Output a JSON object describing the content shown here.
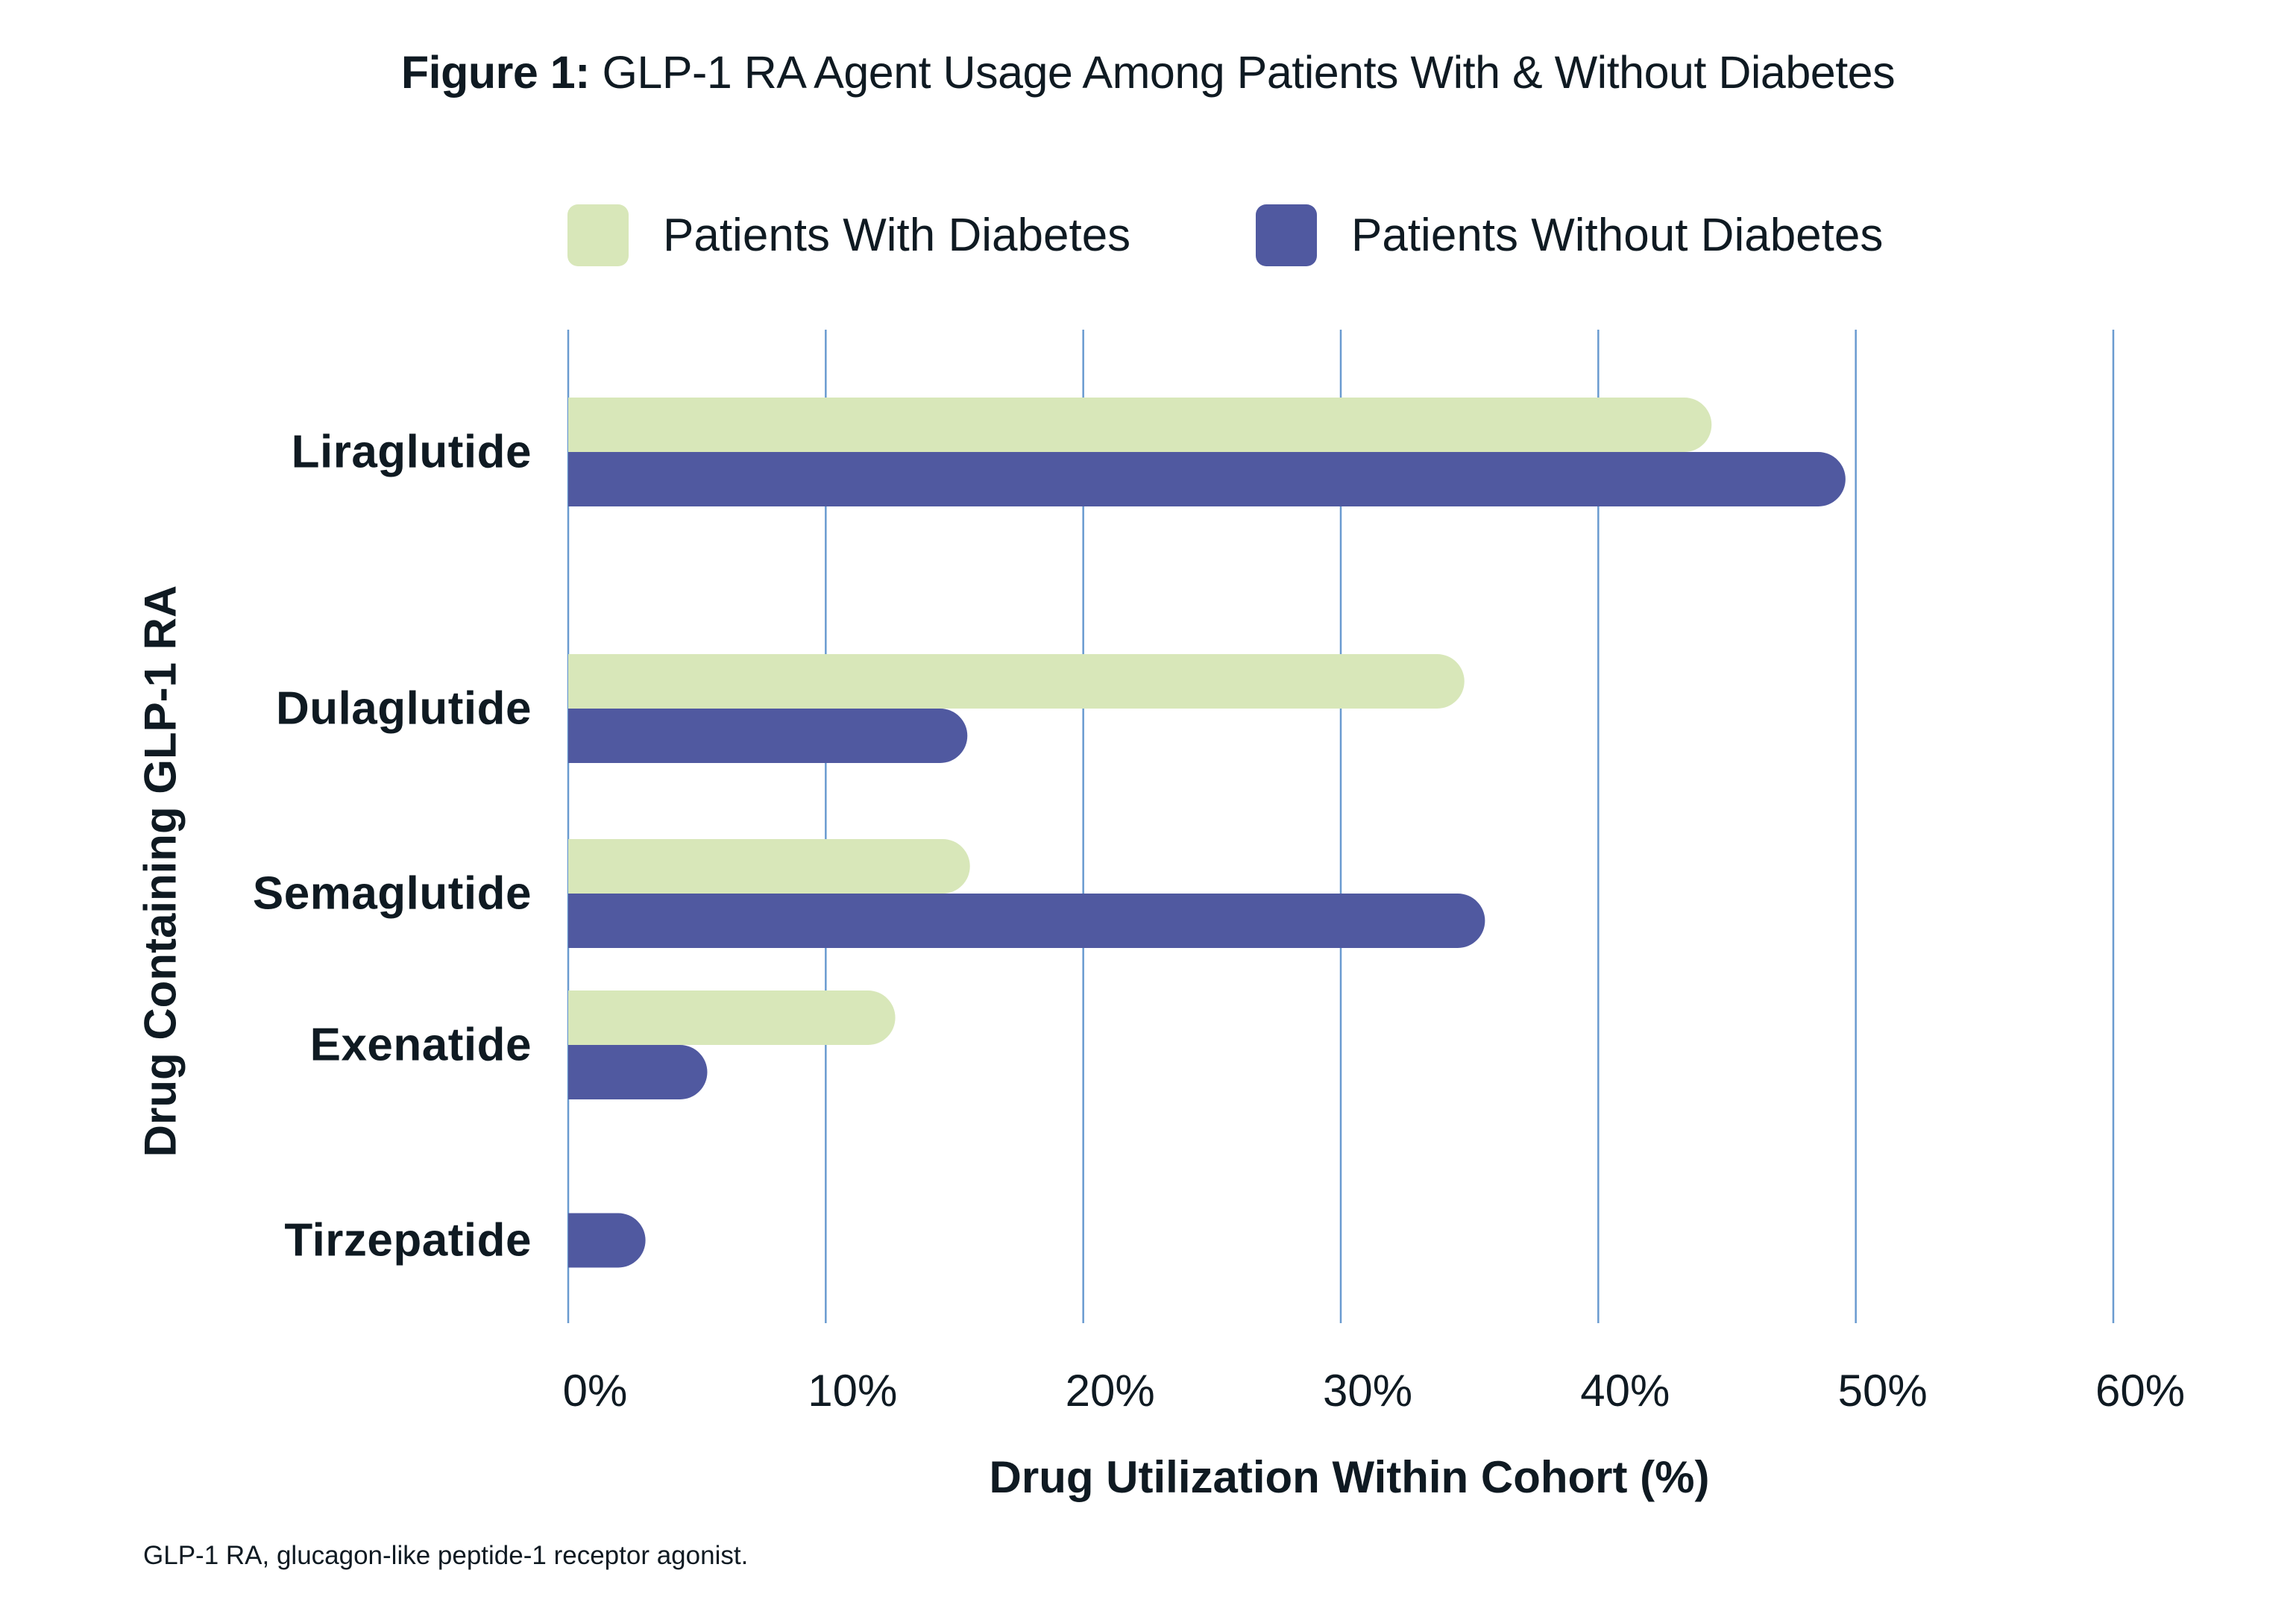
{
  "title": {
    "bold_part": "Figure 1:",
    "text": "GLP-1 RA Agent Usage Among Patients With & Without Diabetes"
  },
  "footnote": "GLP-1 RA, glucagon-like peptide-1 receptor agonist.",
  "colors": {
    "with_diabetes": "#d8e7b9",
    "without_diabetes": "#5059a0",
    "gridline": "#6a9bd0",
    "text": "#0f1a22"
  },
  "chart_data": {
    "type": "bar",
    "orientation": "horizontal",
    "title": "Figure 1: GLP-1 RA Agent Usage Among Patients With & Without Diabetes",
    "xlabel": "Drug Utilization Within Cohort (%)",
    "ylabel": "Drug Containing GLP-1 RA",
    "xlim": [
      0,
      60
    ],
    "x_ticks": [
      "0%",
      "10%",
      "20%",
      "30%",
      "40%",
      "50%",
      "60%"
    ],
    "x_tick_values": [
      0,
      10,
      20,
      30,
      40,
      50,
      60
    ],
    "grid": "vertical",
    "legend_position": "top",
    "categories": [
      "Liraglutide",
      "Dulaglutide",
      "Semaglutide",
      "Exenatide",
      "Tirzepatide"
    ],
    "series": [
      {
        "name": "Patients With Diabetes",
        "values": [
          44.4,
          34.8,
          15.6,
          12.7,
          null
        ]
      },
      {
        "name": "Patients Without Diabetes",
        "values": [
          49.6,
          15.5,
          35.6,
          5.4,
          3.0
        ]
      }
    ]
  }
}
